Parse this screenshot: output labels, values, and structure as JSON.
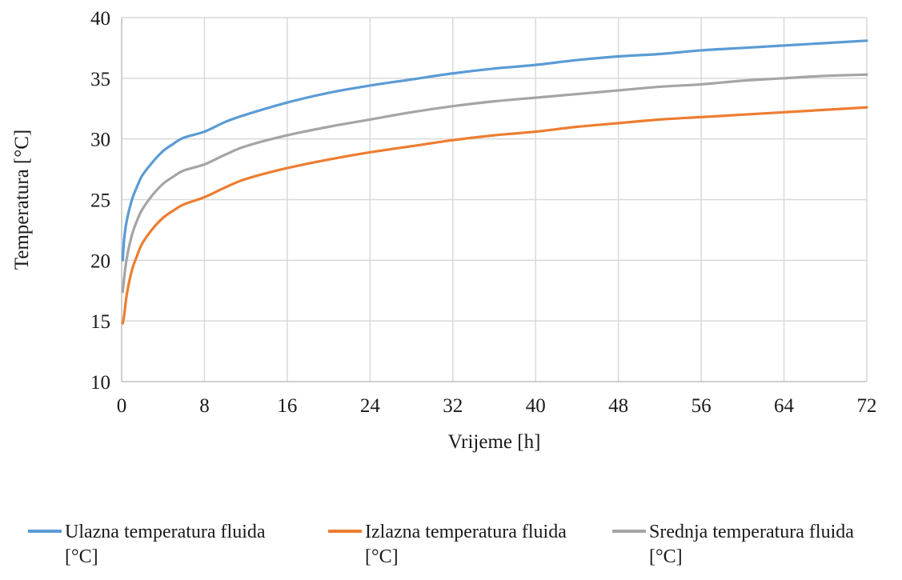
{
  "chart_data": {
    "type": "line",
    "title": "",
    "xlabel": "Vrijeme [h]",
    "ylabel": "Temperatura [°C]",
    "xlim": [
      0,
      72
    ],
    "ylim": [
      10,
      40
    ],
    "xticks": [
      0,
      8,
      16,
      24,
      32,
      40,
      48,
      56,
      64,
      72
    ],
    "yticks": [
      10,
      15,
      20,
      25,
      30,
      35,
      40
    ],
    "grid": true,
    "legend_position": "bottom",
    "x": [
      0.1,
      0.25,
      0.5,
      1,
      1.5,
      2,
      3,
      4,
      5,
      6,
      8,
      10,
      12,
      16,
      20,
      24,
      28,
      32,
      36,
      40,
      44,
      48,
      52,
      56,
      60,
      64,
      68,
      72
    ],
    "series": [
      {
        "name": "Ulazna temperatura fluida [°C]",
        "color": "#5b9bd5",
        "values": [
          20.0,
          21.8,
          23.3,
          25.0,
          26.1,
          27.0,
          28.1,
          29.0,
          29.6,
          30.1,
          30.6,
          31.4,
          32.0,
          33.0,
          33.8,
          34.4,
          34.9,
          35.4,
          35.8,
          36.1,
          36.5,
          36.8,
          37.0,
          37.3,
          37.5,
          37.7,
          37.9,
          38.1
        ]
      },
      {
        "name": "Izlazna temperatura fluida [°C]",
        "color": "#ed7d31",
        "values": [
          14.8,
          15.5,
          17.2,
          19.2,
          20.4,
          21.4,
          22.6,
          23.5,
          24.1,
          24.6,
          25.2,
          26.0,
          26.7,
          27.6,
          28.3,
          28.9,
          29.4,
          29.9,
          30.3,
          30.6,
          31.0,
          31.3,
          31.6,
          31.8,
          32.0,
          32.2,
          32.4,
          32.6
        ]
      },
      {
        "name": "Srednja temperatura fluida [°C]",
        "color": "#a5a5a5",
        "values": [
          17.4,
          18.6,
          20.2,
          22.1,
          23.3,
          24.2,
          25.4,
          26.3,
          26.9,
          27.4,
          27.9,
          28.7,
          29.4,
          30.3,
          31.0,
          31.6,
          32.2,
          32.7,
          33.1,
          33.4,
          33.7,
          34.0,
          34.3,
          34.5,
          34.8,
          35.0,
          35.2,
          35.3
        ]
      }
    ]
  }
}
